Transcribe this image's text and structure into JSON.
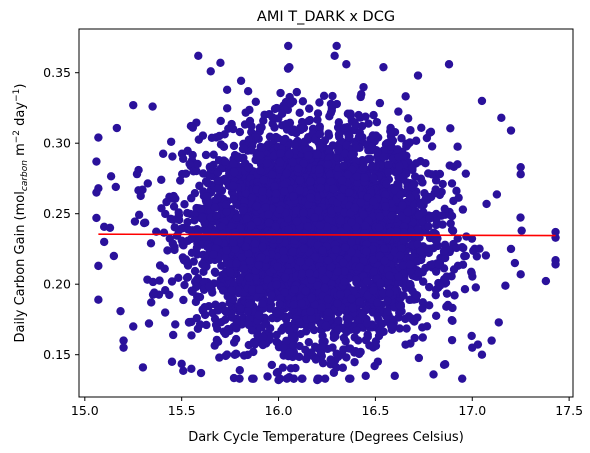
{
  "chart_data": {
    "type": "scatter",
    "title": "AMI T_DARK x DCG",
    "xlabel": "Dark Cycle Temperature (Degrees Celsius)",
    "ylabel_main": "Daily Carbon Gain (mol",
    "ylabel_sub": "carbon",
    "ylabel_mid": " m",
    "ylabel_sup1": "−2",
    "ylabel_mid2": " day",
    "ylabel_sup2": "−1",
    "ylabel_end": ")",
    "xlim": [
      14.97,
      17.52
    ],
    "ylim": [
      0.12,
      0.381
    ],
    "x_ticks": [
      15.0,
      15.5,
      16.0,
      16.5,
      17.0,
      17.5
    ],
    "x_tick_labels": [
      "15.0",
      "15.5",
      "16.0",
      "16.5",
      "17.0",
      "17.5"
    ],
    "y_ticks": [
      0.15,
      0.2,
      0.25,
      0.3,
      0.35
    ],
    "y_tick_labels": [
      "0.15",
      "0.20",
      "0.25",
      "0.30",
      "0.35"
    ],
    "grid": false,
    "point_color": "#2a119b",
    "trend_color": "#ff0000",
    "cloud": {
      "x_mean": 16.18,
      "x_sd": 0.3,
      "y_mean": 0.235,
      "y_sd": 0.036
    },
    "series": [
      {
        "points": [
          [
            15.07,
            0.304
          ],
          [
            15.06,
            0.287
          ],
          [
            15.07,
            0.268
          ],
          [
            15.06,
            0.265
          ],
          [
            15.06,
            0.247
          ],
          [
            15.07,
            0.213
          ],
          [
            15.07,
            0.189
          ],
          [
            15.16,
            0.269
          ],
          [
            15.15,
            0.22
          ],
          [
            15.2,
            0.16
          ],
          [
            15.2,
            0.155
          ],
          [
            15.25,
            0.327
          ],
          [
            15.3,
            0.141
          ],
          [
            15.35,
            0.326
          ],
          [
            15.45,
            0.145
          ],
          [
            15.55,
            0.14
          ],
          [
            15.6,
            0.137
          ],
          [
            15.65,
            0.351
          ],
          [
            15.7,
            0.357
          ],
          [
            15.8,
            0.139
          ],
          [
            16.05,
            0.369
          ],
          [
            16.0,
            0.132
          ],
          [
            16.2,
            0.132
          ],
          [
            16.3,
            0.369
          ],
          [
            16.35,
            0.356
          ],
          [
            16.45,
            0.135
          ],
          [
            16.6,
            0.135
          ],
          [
            16.72,
            0.348
          ],
          [
            16.8,
            0.136
          ],
          [
            16.88,
            0.356
          ],
          [
            17.05,
            0.33
          ],
          [
            17.05,
            0.15
          ],
          [
            17.15,
            0.318
          ],
          [
            17.2,
            0.309
          ],
          [
            17.25,
            0.283
          ],
          [
            17.25,
            0.278
          ],
          [
            17.25,
            0.207
          ],
          [
            17.43,
            0.237
          ],
          [
            17.43,
            0.233
          ],
          [
            17.43,
            0.217
          ],
          [
            17.43,
            0.214
          ],
          [
            17.2,
            0.225
          ],
          [
            17.22,
            0.215
          ],
          [
            15.13,
            0.24
          ],
          [
            15.1,
            0.23
          ],
          [
            17.1,
            0.16
          ],
          [
            17.0,
            0.155
          ],
          [
            15.25,
            0.17
          ]
        ]
      }
    ],
    "trend_line": {
      "x": [
        15.07,
        17.43
      ],
      "y": [
        0.2355,
        0.2345
      ]
    }
  }
}
